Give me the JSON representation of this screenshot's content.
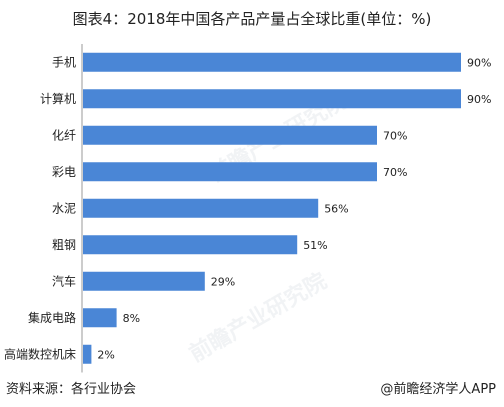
{
  "title": "图表4：2018年中国各产品产量占全球比重(单位：%)",
  "source": "资料来源：各行业协会",
  "credit": "@前瞻经济学人APP",
  "watermark": "前瞻产业研究院",
  "colors": {
    "bar": "#4a86d6",
    "axis": "#999999",
    "text": "#222222"
  },
  "chart_data": {
    "type": "bar",
    "orientation": "horizontal",
    "title": "图表4：2018年中国各产品产量占全球比重(单位：%)",
    "xlabel": "",
    "ylabel": "",
    "unit": "%",
    "xlim": [
      0,
      90
    ],
    "grid": false,
    "categories": [
      "手机",
      "计算机",
      "化纤",
      "彩电",
      "水泥",
      "粗钢",
      "汽车",
      "集成电路",
      "高端数控机床"
    ],
    "values": [
      90,
      90,
      70,
      70,
      56,
      51,
      29,
      8,
      2
    ],
    "data_labels": [
      "90%",
      "90%",
      "70%",
      "70%",
      "56%",
      "51%",
      "29%",
      "8%",
      "2%"
    ]
  }
}
